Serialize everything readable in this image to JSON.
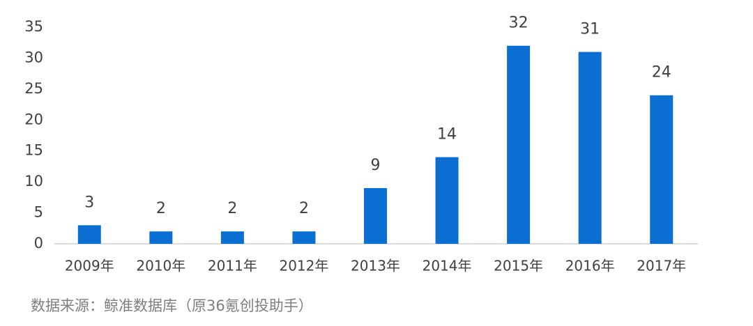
{
  "chart_data": {
    "type": "bar",
    "categories": [
      "2009年",
      "2010年",
      "2011年",
      "2012年",
      "2013年",
      "2014年",
      "2015年",
      "2016年",
      "2017年"
    ],
    "values": [
      3,
      2,
      2,
      2,
      9,
      14,
      32,
      31,
      24
    ],
    "color": "#0a6fd1",
    "ylim": [
      0,
      35
    ],
    "yticks": [
      0,
      5,
      10,
      15,
      20,
      25,
      30,
      35
    ],
    "grid": false,
    "source": "数据来源：鲸准数据库（原36氪创投助手）"
  }
}
